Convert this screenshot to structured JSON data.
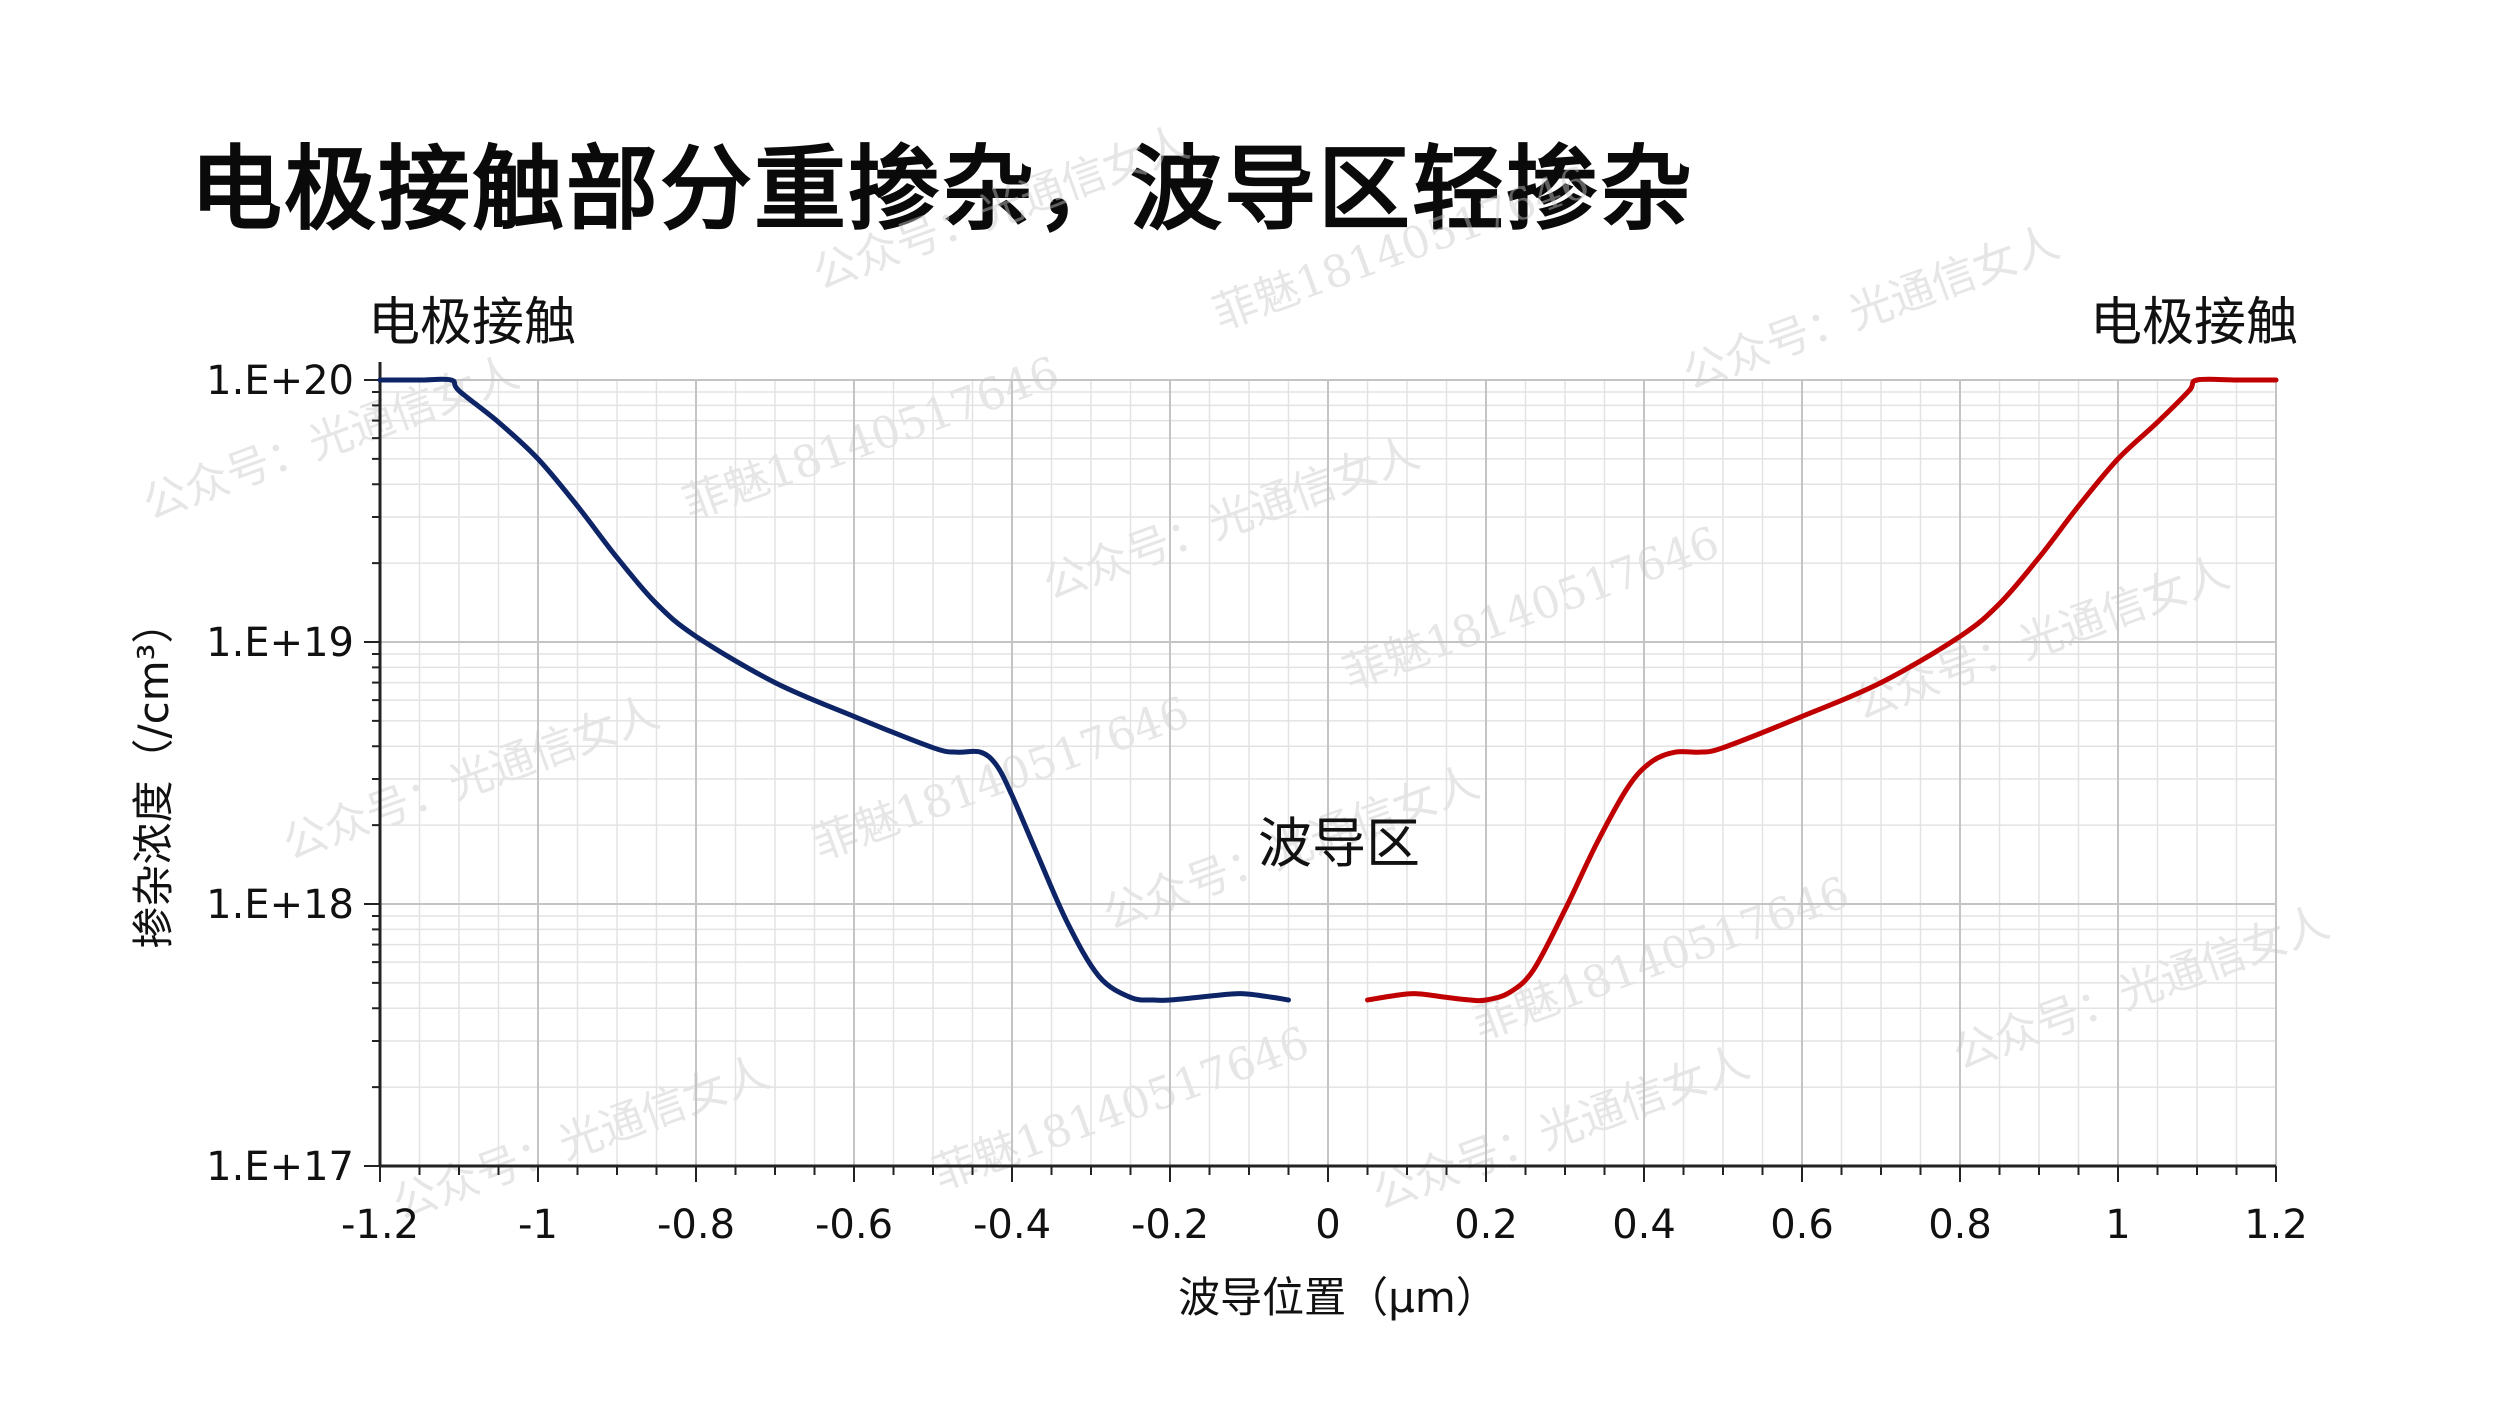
{
  "page": {
    "title": "电极接触部分重掺杂，波导区轻掺杂"
  },
  "annotations": {
    "left_contact": "电极接触",
    "right_contact": "电极接触",
    "waveguide": "波导区"
  },
  "watermarks": {
    "account": "公众号：光通信女人",
    "contact": "菲魅18140517646"
  },
  "chart_data": {
    "type": "line",
    "title": "电极接触部分重掺杂，波导区轻掺杂",
    "xlabel": "波导位置（μm）",
    "ylabel": "掺杂浓度（/cm³）",
    "xlim": [
      -1.2,
      1.2
    ],
    "ylim": [
      1e+17,
      1e+20
    ],
    "yscale": "log",
    "grid": true,
    "x_ticks": [
      "-1.2",
      "-1",
      "-0.8",
      "-0.6",
      "-0.4",
      "-0.2",
      "0",
      "0.2",
      "0.4",
      "0.6",
      "0.8",
      "1",
      "1.2"
    ],
    "x_tick_values": [
      -1.2,
      -1,
      -0.8,
      -0.6,
      -0.4,
      -0.2,
      0,
      0.2,
      0.4,
      0.6,
      0.8,
      1,
      1.2
    ],
    "y_ticks": [
      "1.E+20",
      "1.E+19",
      "1.E+18",
      "1.E+17"
    ],
    "y_tick_values": [
      1e+20,
      1e+19,
      1e+18,
      1e+17
    ],
    "series": [
      {
        "color": "#0d2466",
        "x": [
          -1.2,
          -1.15,
          -1.11,
          -1.1,
          -1.05,
          -1.0,
          -0.95,
          -0.9,
          -0.85,
          -0.8,
          -0.7,
          -0.6,
          -0.5,
          -0.47,
          -0.44,
          -0.42,
          -0.4,
          -0.37,
          -0.33,
          -0.29,
          -0.25,
          -0.22,
          -0.2,
          -0.15,
          -0.11,
          -0.07,
          -0.05
        ],
        "y": [
          1e+20,
          1e+20,
          1e+20,
          9.1e+19,
          6.9e+19,
          5e+19,
          3.3e+19,
          2.1e+19,
          1.4e+19,
          1.05e+19,
          7e+18,
          5.2e+18,
          3.95e+18,
          3.8e+18,
          3.8e+18,
          3.4e+18,
          2.6e+18,
          1.6e+18,
          8.5e+17,
          5.3e+17,
          4.4e+17,
          4.3e+17,
          4.3e+17,
          4.45e+17,
          4.55e+17,
          4.4e+17,
          4.3e+17
        ]
      },
      {
        "color": "#c00000",
        "x": [
          0.05,
          0.08,
          0.11,
          0.15,
          0.18,
          0.2,
          0.23,
          0.26,
          0.3,
          0.34,
          0.38,
          0.41,
          0.44,
          0.47,
          0.5,
          0.6,
          0.7,
          0.8,
          0.85,
          0.9,
          0.95,
          1.0,
          1.05,
          1.09,
          1.1,
          1.15,
          1.2
        ],
        "y": [
          4.3e+17,
          4.45e+17,
          4.55e+17,
          4.4e+17,
          4.3e+17,
          4.3e+17,
          4.6e+17,
          5.6e+17,
          9.5e+17,
          1.7e+18,
          2.8e+18,
          3.5e+18,
          3.8e+18,
          3.8e+18,
          3.95e+18,
          5.2e+18,
          7e+18,
          1.05e+19,
          1.4e+19,
          2.1e+19,
          3.3e+19,
          5e+19,
          6.9e+19,
          9.1e+19,
          1e+20,
          1e+20,
          1e+20
        ]
      }
    ]
  }
}
